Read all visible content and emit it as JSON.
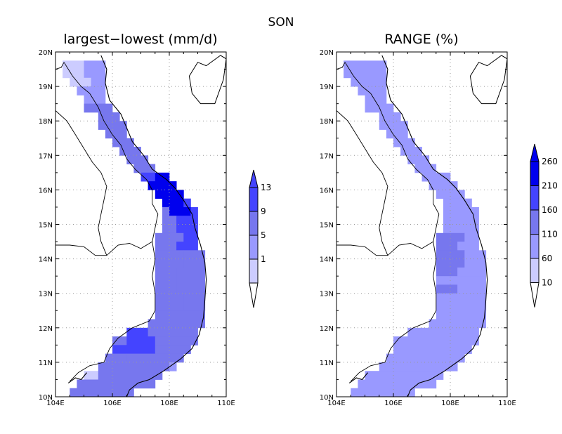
{
  "main_title": "SON",
  "colors": {
    "lightest": "#ccccff",
    "light": "#9999ff",
    "medium": "#7777ee",
    "dark": "#4444ff",
    "darkest": "#0000ee",
    "border": "#000000",
    "grid": "#999999"
  },
  "panels": [
    {
      "title": "largest−lowest (mm/d)",
      "lon_ticks": [
        "104E",
        "106E",
        "108E",
        "110E"
      ],
      "lat_ticks": [
        "10N",
        "11N",
        "12N",
        "13N",
        "14N",
        "15N",
        "16N",
        "17N",
        "18N",
        "19N",
        "20N"
      ],
      "colorbar": {
        "labels": [
          "1",
          "5",
          "9",
          "13"
        ]
      }
    },
    {
      "title": "RANGE (%)",
      "lon_ticks": [
        "104E",
        "106E",
        "108E",
        "110E"
      ],
      "lat_ticks": [
        "10N",
        "11N",
        "12N",
        "13N",
        "14N",
        "15N",
        "16N",
        "17N",
        "18N",
        "19N",
        "20N"
      ],
      "colorbar": {
        "labels": [
          "10",
          "60",
          "110",
          "160",
          "210",
          "260"
        ]
      }
    }
  ]
}
